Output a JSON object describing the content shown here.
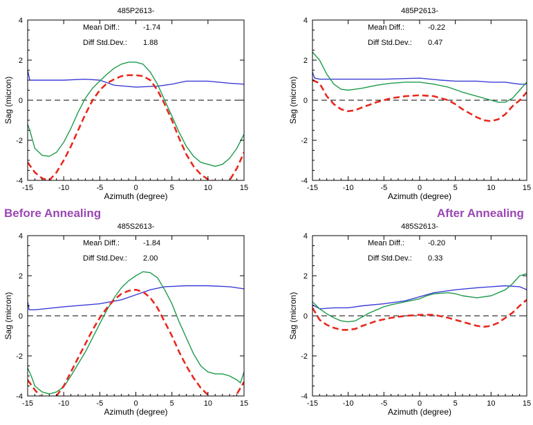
{
  "annotations": {
    "before": "Before Annealing",
    "after": "After Annealing"
  },
  "colors": {
    "blue": "#3b3bd6",
    "green": "#1c9a4a",
    "red": "#e8281c",
    "axis": "#000000",
    "zero": "#000000",
    "annotation": "#9a47b4"
  },
  "chart_data": [
    {
      "type": "line",
      "title": "485P2613-",
      "xlabel": "Azimuth (degree)",
      "ylabel": "Sag (micron)",
      "xlim": [
        -15,
        15
      ],
      "ylim": [
        -4,
        4
      ],
      "xticks": [
        -15,
        -10,
        -5,
        0,
        5,
        10,
        15
      ],
      "yticks": [
        -4,
        -2,
        0,
        2,
        4
      ],
      "reference_line": 0,
      "stats": {
        "mean_label": "Mean Diff.:",
        "mean_value": "-1.74",
        "std_label": "Diff Std.Dev.:",
        "std_value": "1.88"
      },
      "series": [
        {
          "color": "blue",
          "style": "solid",
          "x": [
            -15,
            -14.7,
            -13,
            -10,
            -7,
            -5,
            -3,
            0,
            3,
            5,
            7,
            10,
            13,
            15
          ],
          "y": [
            1.5,
            1.0,
            1.0,
            1.0,
            1.05,
            1.0,
            0.75,
            0.65,
            0.7,
            0.8,
            0.95,
            0.95,
            0.85,
            0.8
          ]
        },
        {
          "color": "green",
          "style": "solid",
          "x": [
            -15,
            -14.7,
            -14,
            -13,
            -12,
            -11,
            -10,
            -9,
            -8,
            -7,
            -6,
            -5,
            -4,
            -3,
            -2,
            -1,
            0,
            1,
            2,
            3,
            4,
            5,
            6,
            7,
            8,
            9,
            10,
            11,
            12,
            13,
            14,
            15
          ],
          "y": [
            -1.2,
            -1.5,
            -2.4,
            -2.75,
            -2.8,
            -2.6,
            -2.1,
            -1.4,
            -0.6,
            0.1,
            0.6,
            0.95,
            1.3,
            1.6,
            1.8,
            1.9,
            1.9,
            1.8,
            1.4,
            0.8,
            0.0,
            -0.8,
            -1.6,
            -2.3,
            -2.8,
            -3.1,
            -3.2,
            -3.3,
            -3.2,
            -2.9,
            -2.4,
            -1.7
          ]
        },
        {
          "color": "red",
          "style": "dashed",
          "x": [
            -15,
            -14,
            -13,
            -12,
            -11,
            -10,
            -9,
            -8,
            -7,
            -6,
            -5,
            -4,
            -3,
            -2,
            -1,
            0,
            1,
            2,
            3,
            4,
            5,
            6,
            7,
            8,
            9,
            10,
            11,
            12,
            13,
            14,
            15
          ],
          "y": [
            -3.1,
            -3.6,
            -3.9,
            -4.0,
            -3.6,
            -3.0,
            -2.3,
            -1.5,
            -0.7,
            0.0,
            0.5,
            0.85,
            1.05,
            1.2,
            1.25,
            1.25,
            1.2,
            1.0,
            0.5,
            -0.2,
            -1.0,
            -1.9,
            -2.7,
            -3.3,
            -3.7,
            -3.95,
            -4.05,
            -4.1,
            -4.0,
            -3.4,
            -2.6
          ]
        }
      ]
    },
    {
      "type": "line",
      "title": "485P2613-",
      "xlabel": "Azimuth (degree)",
      "ylabel": "Sag (micron)",
      "xlim": [
        -15,
        15
      ],
      "ylim": [
        -4,
        4
      ],
      "xticks": [
        -15,
        -10,
        -5,
        0,
        5,
        10,
        15
      ],
      "yticks": [
        -4,
        -2,
        0,
        2,
        4
      ],
      "reference_line": 0,
      "stats": {
        "mean_label": "Mean Diff.:",
        "mean_value": "-0.22",
        "std_label": "Diff Std.Dev.:",
        "std_value": "0.47"
      },
      "series": [
        {
          "color": "blue",
          "style": "solid",
          "x": [
            -15,
            -14.7,
            -14,
            -10,
            -5,
            0,
            3,
            5,
            8,
            10,
            12,
            13,
            14,
            15
          ],
          "y": [
            1.4,
            1.1,
            1.05,
            1.05,
            1.05,
            1.1,
            1.0,
            0.95,
            0.95,
            0.9,
            0.9,
            0.85,
            0.8,
            0.8
          ]
        },
        {
          "color": "green",
          "style": "solid",
          "x": [
            -15,
            -14,
            -13,
            -12,
            -11,
            -10,
            -9,
            -8,
            -6,
            -4,
            -2,
            0,
            2,
            4,
            6,
            8,
            10,
            11,
            12,
            13,
            14,
            15
          ],
          "y": [
            2.4,
            2.0,
            1.3,
            0.8,
            0.55,
            0.5,
            0.55,
            0.6,
            0.75,
            0.85,
            0.9,
            0.9,
            0.8,
            0.65,
            0.4,
            0.2,
            0.0,
            -0.1,
            -0.1,
            0.1,
            0.5,
            0.9
          ]
        },
        {
          "color": "red",
          "style": "dashed",
          "x": [
            -15,
            -14,
            -13,
            -12,
            -11,
            -10,
            -9,
            -8,
            -6,
            -4,
            -2,
            0,
            2,
            4,
            5,
            6,
            8,
            9,
            10,
            11,
            12,
            13,
            14,
            15
          ],
          "y": [
            1.0,
            0.85,
            0.2,
            -0.2,
            -0.45,
            -0.55,
            -0.5,
            -0.35,
            -0.1,
            0.1,
            0.2,
            0.25,
            0.2,
            0.0,
            -0.2,
            -0.45,
            -0.85,
            -1.0,
            -1.05,
            -0.95,
            -0.7,
            -0.3,
            0.0,
            0.4
          ]
        }
      ]
    },
    {
      "type": "line",
      "title": "485S2613-",
      "xlabel": "Azimuth (degree)",
      "ylabel": "Sag (micron)",
      "xlim": [
        -15,
        15
      ],
      "ylim": [
        -4,
        4
      ],
      "xticks": [
        -15,
        -10,
        -5,
        0,
        5,
        10,
        15
      ],
      "yticks": [
        -4,
        -2,
        0,
        2,
        4
      ],
      "reference_line": 0,
      "stats": {
        "mean_label": "Mean Diff.:",
        "mean_value": "-1.84",
        "std_label": "Diff Std.Dev.:",
        "std_value": "2.00"
      },
      "series": [
        {
          "color": "blue",
          "style": "solid",
          "x": [
            -15,
            -14.8,
            -14,
            -10,
            -5,
            -2,
            0,
            2,
            4,
            7,
            10,
            13,
            15
          ],
          "y": [
            0.7,
            0.3,
            0.3,
            0.45,
            0.6,
            0.8,
            1.05,
            1.3,
            1.45,
            1.5,
            1.5,
            1.45,
            1.35
          ]
        },
        {
          "color": "green",
          "style": "solid",
          "x": [
            -15,
            -14.5,
            -14,
            -13,
            -12,
            -11,
            -10,
            -9,
            -8,
            -7,
            -6,
            -5,
            -4,
            -3,
            -2,
            -1,
            0,
            1,
            2,
            3,
            4,
            5,
            6,
            7,
            8,
            9,
            10,
            11,
            12,
            13,
            14,
            14.5,
            15
          ],
          "y": [
            -2.6,
            -3.0,
            -3.5,
            -3.8,
            -3.9,
            -3.8,
            -3.55,
            -3.0,
            -2.4,
            -1.8,
            -1.1,
            -0.4,
            0.3,
            0.9,
            1.4,
            1.75,
            2.0,
            2.2,
            2.15,
            1.9,
            1.3,
            0.6,
            -0.3,
            -1.1,
            -1.9,
            -2.5,
            -2.8,
            -2.9,
            -2.9,
            -3.0,
            -3.2,
            -3.35,
            -2.8
          ]
        },
        {
          "color": "red",
          "style": "dashed",
          "x": [
            -15,
            -14,
            -13,
            -12,
            -11,
            -10,
            -9,
            -8,
            -7,
            -6,
            -5,
            -4,
            -3,
            -2,
            -1,
            0,
            1,
            2,
            3,
            4,
            5,
            6,
            7,
            8,
            9,
            10,
            11,
            12,
            13,
            14,
            15
          ],
          "y": [
            -3.2,
            -3.7,
            -4.1,
            -4.2,
            -4.0,
            -3.5,
            -2.8,
            -2.1,
            -1.4,
            -0.7,
            -0.1,
            0.4,
            0.8,
            1.1,
            1.25,
            1.3,
            1.2,
            0.9,
            0.4,
            -0.3,
            -1.0,
            -1.8,
            -2.5,
            -3.1,
            -3.6,
            -3.95,
            -4.15,
            -4.2,
            -4.15,
            -3.9,
            -3.3
          ]
        }
      ]
    },
    {
      "type": "line",
      "title": "485S2613-",
      "xlabel": "Azimuth (degree)",
      "ylabel": "Sag (micron)",
      "xlim": [
        -15,
        15
      ],
      "ylim": [
        -4,
        4
      ],
      "xticks": [
        -15,
        -10,
        -5,
        0,
        5,
        10,
        15
      ],
      "yticks": [
        -4,
        -2,
        0,
        2,
        4
      ],
      "reference_line": 0,
      "stats": {
        "mean_label": "Mean Diff.:",
        "mean_value": "-0.20",
        "std_label": "Diff Std.Dev.:",
        "std_value": "0.33"
      },
      "series": [
        {
          "color": "blue",
          "style": "solid",
          "x": [
            -15,
            -14,
            -12,
            -10,
            -8,
            -5,
            -2,
            0,
            2,
            5,
            8,
            10,
            12,
            14,
            15
          ],
          "y": [
            0.55,
            0.35,
            0.4,
            0.4,
            0.5,
            0.6,
            0.75,
            0.95,
            1.15,
            1.3,
            1.4,
            1.45,
            1.5,
            1.45,
            1.3
          ]
        },
        {
          "color": "green",
          "style": "solid",
          "x": [
            -15,
            -14,
            -13,
            -12,
            -11,
            -10,
            -9,
            -8,
            -7,
            -6,
            -5,
            -4,
            -2,
            0,
            1,
            2,
            4,
            5,
            6,
            8,
            10,
            12,
            13,
            14,
            15
          ],
          "y": [
            0.7,
            0.35,
            0.1,
            -0.1,
            -0.25,
            -0.3,
            -0.25,
            -0.05,
            0.15,
            0.3,
            0.45,
            0.55,
            0.7,
            0.85,
            1.0,
            1.1,
            1.15,
            1.1,
            1.0,
            0.9,
            1.0,
            1.3,
            1.6,
            2.0,
            2.1
          ]
        },
        {
          "color": "red",
          "style": "dashed",
          "x": [
            -15,
            -14,
            -13,
            -12,
            -11,
            -10,
            -9,
            -8,
            -6,
            -4,
            -2,
            0,
            2,
            4,
            6,
            7,
            8,
            9,
            10,
            11,
            12,
            13,
            14,
            15
          ],
          "y": [
            0.4,
            -0.2,
            -0.45,
            -0.6,
            -0.7,
            -0.7,
            -0.65,
            -0.5,
            -0.25,
            -0.1,
            0.0,
            0.05,
            0.05,
            -0.1,
            -0.3,
            -0.4,
            -0.5,
            -0.55,
            -0.5,
            -0.35,
            -0.1,
            0.15,
            0.5,
            0.8
          ]
        }
      ]
    }
  ]
}
